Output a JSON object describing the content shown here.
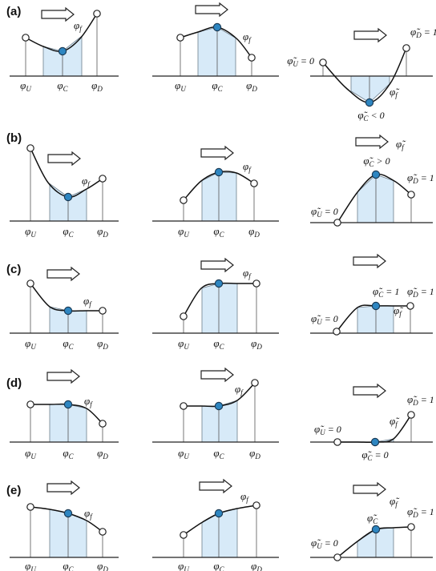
{
  "rows": [
    {
      "label": "(a)",
      "panels": [
        {
          "labels": {
            "u": "φ",
            "u_sub": "U",
            "c": "φ",
            "c_sub": "C",
            "d": "φ",
            "d_sub": "D",
            "f": "φ",
            "f_sub": "f"
          }
        },
        {
          "labels": {
            "u": "φ",
            "u_sub": "U",
            "c": "φ",
            "c_sub": "C",
            "d": "φ",
            "d_sub": "D",
            "f": "φ",
            "f_sub": "f"
          }
        },
        {
          "labels": {
            "u": "φ̃",
            "u_sub": "U",
            "u_eq": "= 0",
            "c": "φ̃",
            "c_sub": "C",
            "c_eq": "< 0",
            "d": "φ̃",
            "d_sub": "D",
            "d_eq": "= 1",
            "f": "φ̃",
            "f_sub": "f"
          }
        }
      ]
    },
    {
      "label": "(b)",
      "panels": [
        {
          "labels": {
            "u": "φ",
            "u_sub": "U",
            "c": "φ",
            "c_sub": "C",
            "d": "φ",
            "d_sub": "D",
            "f": "φ",
            "f_sub": "f"
          }
        },
        {
          "labels": {
            "u": "φ",
            "u_sub": "U",
            "c": "φ",
            "c_sub": "C",
            "d": "φ",
            "d_sub": "D",
            "f": "φ",
            "f_sub": "f"
          }
        },
        {
          "labels": {
            "u": "φ̃",
            "u_sub": "U",
            "u_eq": "= 0",
            "c": "φ̃",
            "c_sub": "C",
            "c_eq": "> 0",
            "d": "φ̃",
            "d_sub": "D",
            "d_eq": "= 1",
            "f": "φ̃",
            "f_sub": "f"
          }
        }
      ]
    },
    {
      "label": "(c)",
      "panels": [
        {
          "labels": {
            "u": "φ",
            "u_sub": "U",
            "c": "φ",
            "c_sub": "C",
            "d": "φ",
            "d_sub": "D",
            "f": "φ",
            "f_sub": "f"
          }
        },
        {
          "labels": {
            "u": "φ",
            "u_sub": "U",
            "c": "φ",
            "c_sub": "C",
            "d": "φ",
            "d_sub": "D",
            "f": "φ",
            "f_sub": "f"
          }
        },
        {
          "labels": {
            "u": "φ̃",
            "u_sub": "U",
            "u_eq": "= 0",
            "c": "φ̃",
            "c_sub": "C",
            "c_eq": "= 1",
            "d": "φ̃",
            "d_sub": "D",
            "d_eq": "= 1",
            "f": "φ̃",
            "f_sub": "f"
          }
        }
      ]
    },
    {
      "label": "(d)",
      "panels": [
        {
          "labels": {
            "u": "φ",
            "u_sub": "U",
            "c": "φ",
            "c_sub": "C",
            "d": "φ",
            "d_sub": "D",
            "f": "φ",
            "f_sub": "f"
          }
        },
        {
          "labels": {
            "u": "φ",
            "u_sub": "U",
            "c": "φ",
            "c_sub": "C",
            "d": "φ",
            "d_sub": "D",
            "f": "φ",
            "f_sub": "f"
          }
        },
        {
          "labels": {
            "u": "φ̃",
            "u_sub": "U",
            "u_eq": "= 0",
            "c": "φ̃",
            "c_sub": "C",
            "c_eq": "= 0",
            "d": "φ̃",
            "d_sub": "D",
            "d_eq": "= 1",
            "f": "φ̃",
            "f_sub": "f"
          }
        }
      ]
    },
    {
      "label": "(e)",
      "panels": [
        {
          "labels": {
            "u": "φ",
            "u_sub": "U",
            "c": "φ",
            "c_sub": "C",
            "d": "φ",
            "d_sub": "D",
            "f": "φ",
            "f_sub": "f"
          }
        },
        {
          "labels": {
            "u": "φ",
            "u_sub": "U",
            "c": "φ",
            "c_sub": "C",
            "d": "φ",
            "d_sub": "D",
            "f": "φ",
            "f_sub": "f"
          }
        },
        {
          "labels": {
            "u": "φ̃",
            "u_sub": "U",
            "u_eq": "= 0",
            "c": "φ̃",
            "c_sub": "C",
            "d": "φ̃",
            "d_sub": "D",
            "d_eq": "= 1",
            "f": "φ̃",
            "f_sub": "f"
          }
        }
      ]
    }
  ]
}
